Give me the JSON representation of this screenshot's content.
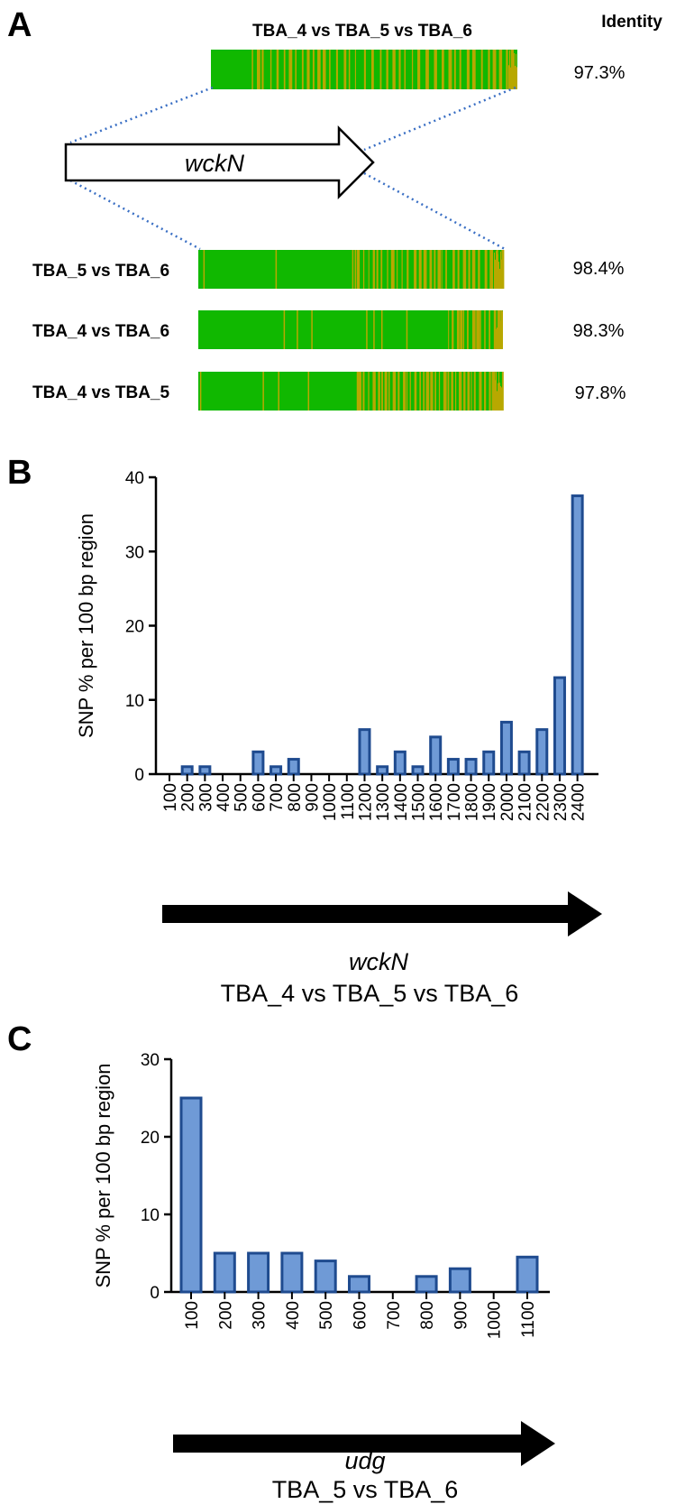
{
  "colors": {
    "align_green": "#10b800",
    "align_olive": "#b8a800",
    "bar_fill": "#6f9ad6",
    "bar_stroke": "#1f4b8f",
    "dotted": "#3a6fc4",
    "axis": "#000000"
  },
  "panel_a": {
    "letter": "A",
    "identity_header": "Identity",
    "gene_label": "wckN",
    "top_track": {
      "label": "TBA_4 vs TBA_5 vs TBA_6",
      "identity": "97.3%",
      "mismatch_density": "high"
    },
    "tracks": [
      {
        "label": "TBA_5 vs TBA_6",
        "identity": "98.4%"
      },
      {
        "label": "TBA_4 vs TBA_6",
        "identity": "98.3%"
      },
      {
        "label": "TBA_4 vs TBA_5",
        "identity": "97.8%"
      }
    ]
  },
  "panel_b": {
    "letter": "B",
    "gene_label": "wckN",
    "comparison_label": "TBA_4 vs TBA_5 vs TBA_6"
  },
  "panel_c": {
    "letter": "C",
    "gene_label": "udg",
    "comparison_label": "TBA_5 vs TBA_6"
  },
  "chart_data": [
    {
      "id": "B",
      "type": "bar",
      "title": "",
      "xlabel": "wckN",
      "ylabel": "SNP % per 100 bp region",
      "ylim": [
        0,
        40
      ],
      "yticks": [
        0,
        10,
        20,
        30,
        40
      ],
      "categories": [
        "100",
        "200",
        "300",
        "400",
        "500",
        "600",
        "700",
        "800",
        "900",
        "1000",
        "1100",
        "1200",
        "1300",
        "1400",
        "1500",
        "1600",
        "1700",
        "1800",
        "1900",
        "2000",
        "2100",
        "2200",
        "2300",
        "2400"
      ],
      "values": [
        0,
        1,
        1,
        0,
        0,
        3,
        1,
        2,
        0,
        0,
        0,
        6,
        1,
        3,
        1,
        5,
        2,
        2,
        3,
        7,
        3,
        6,
        13,
        37.5
      ]
    },
    {
      "id": "C",
      "type": "bar",
      "title": "",
      "xlabel": "udg",
      "ylabel": "SNP % per 100 bp region",
      "ylim": [
        0,
        30
      ],
      "yticks": [
        0,
        10,
        20,
        30
      ],
      "categories": [
        "100",
        "200",
        "300",
        "400",
        "500",
        "600",
        "700",
        "800",
        "900",
        "1000",
        "1100"
      ],
      "values": [
        25,
        5,
        5,
        5,
        4,
        2,
        0,
        2,
        3,
        0,
        4.5
      ]
    }
  ]
}
